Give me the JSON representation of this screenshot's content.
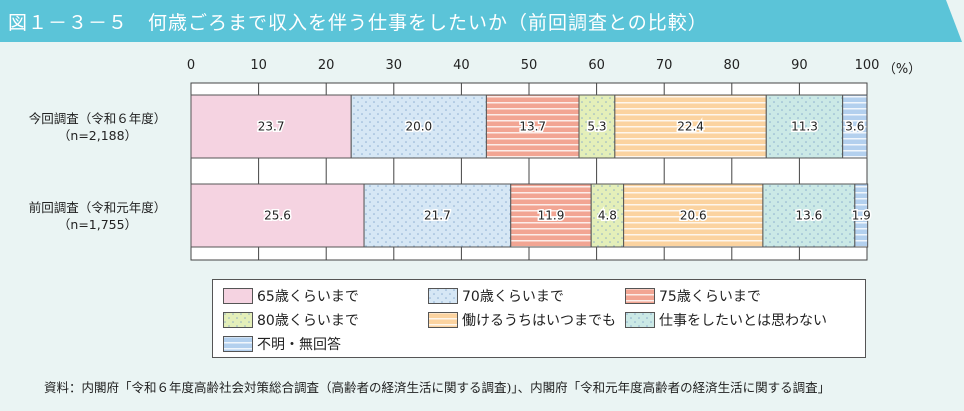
{
  "title": "図１－３－５　何歳ごろまで収入を伴う仕事をしたいか（前回調査との比較）",
  "chart_data": {
    "type": "bar",
    "orientation": "horizontal-stacked",
    "xlim": [
      0,
      100
    ],
    "xticks": [
      "0",
      "10",
      "20",
      "30",
      "40",
      "50",
      "60",
      "70",
      "80",
      "90",
      "100"
    ],
    "xunit": "（%）",
    "categories": [
      {
        "label": "今回調査（令和６年度）",
        "n": "（n=2,188）"
      },
      {
        "label": "前回調査（令和元年度）",
        "n": "（n=1,755）"
      }
    ],
    "series": [
      {
        "name": "65歳くらいまで",
        "values": [
          23.7,
          25.6
        ],
        "color": "#f5d3e1",
        "pattern": "plain"
      },
      {
        "name": "70歳くらいまで",
        "values": [
          20.0,
          21.7
        ],
        "color": "#d6e7f5",
        "pattern": "dots"
      },
      {
        "name": "75歳くらいまで",
        "values": [
          13.7,
          11.9
        ],
        "color": "#f2a593",
        "pattern": "stripes"
      },
      {
        "name": "80歳くらいまで",
        "values": [
          5.3,
          4.8
        ],
        "color": "#e4efb9",
        "pattern": "dots"
      },
      {
        "name": "働けるうちはいつまでも",
        "values": [
          22.4,
          20.6
        ],
        "color": "#fbd3a0",
        "pattern": "stripes"
      },
      {
        "name": "仕事をしたいとは思わない",
        "values": [
          11.3,
          13.6
        ],
        "color": "#cbe9e6",
        "pattern": "dots"
      },
      {
        "name": "不明・無回答",
        "values": [
          3.6,
          1.9
        ],
        "color": "#b3d0ee",
        "pattern": "stripes"
      }
    ],
    "legend": "bottom"
  },
  "source": "資料：内閣府「令和６年度高齢社会対策総合調査（高齢者の経済生活に関する調査)」、内閣府「令和元年度高齢者の経済生活に関する調査」",
  "header_color": "#5bc4d8"
}
